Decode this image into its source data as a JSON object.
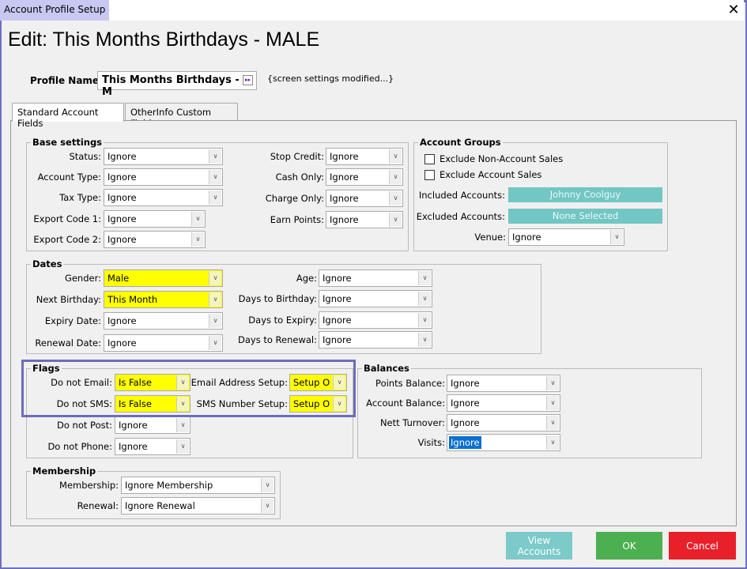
{
  "window": {
    "title": "Account Profile Setup",
    "close_label": "✕"
  },
  "heading": "Edit: This Months Birthdays - MALE",
  "profile": {
    "label": "Profile Name:",
    "value": "This Months Birthdays - M",
    "button_icon": "fast-forward-icon",
    "button_glyph": "▸▸",
    "note": "{screen settings modified...}"
  },
  "tabs": [
    {
      "label": "Standard Account Fields",
      "active": true
    },
    {
      "label": "OtherInfo Custom Fields",
      "active": false
    }
  ],
  "groups": {
    "base": "Base settings",
    "account_groups": "Account Groups",
    "dates": "Dates",
    "flags": "Flags",
    "balances": "Balances",
    "membership": "Membership"
  },
  "fields": {
    "status": {
      "label": "Status:",
      "value": "Ignore"
    },
    "account_type": {
      "label": "Account Type:",
      "value": "Ignore"
    },
    "tax_type": {
      "label": "Tax Type:",
      "value": "Ignore"
    },
    "export_code_1": {
      "label": "Export Code 1:",
      "value": "Ignore"
    },
    "export_code_2": {
      "label": "Export Code 2:",
      "value": "Ignore"
    },
    "stop_credit": {
      "label": "Stop Credit:",
      "value": "Ignore"
    },
    "cash_only": {
      "label": "Cash Only:",
      "value": "Ignore"
    },
    "charge_only": {
      "label": "Charge Only:",
      "value": "Ignore"
    },
    "earn_points": {
      "label": "Earn Points:",
      "value": "Ignore"
    },
    "venue": {
      "label": "Venue:",
      "value": "Ignore"
    },
    "gender": {
      "label": "Gender:",
      "value": "Male",
      "highlighted": true
    },
    "next_birthday": {
      "label": "Next Birthday:",
      "value": "This Month",
      "highlighted": true
    },
    "expiry_date": {
      "label": "Expiry Date:",
      "value": "Ignore"
    },
    "renewal_date": {
      "label": "Renewal Date:",
      "value": "Ignore"
    },
    "age": {
      "label": "Age:",
      "value": "Ignore"
    },
    "days_to_birthday": {
      "label": "Days to Birthday:",
      "value": "Ignore"
    },
    "days_to_expiry": {
      "label": "Days to Expiry:",
      "value": "Ignore"
    },
    "days_to_renewal": {
      "label": "Days to Renewal:",
      "value": "Ignore"
    },
    "do_not_email": {
      "label": "Do not Email:",
      "value": "Is False",
      "highlighted": true
    },
    "do_not_sms": {
      "label": "Do not SMS:",
      "value": "Is False",
      "highlighted": true
    },
    "do_not_post": {
      "label": "Do not Post:",
      "value": "Ignore"
    },
    "do_not_phone": {
      "label": "Do not Phone:",
      "value": "Ignore"
    },
    "email_address_setup": {
      "label": "Email Address Setup:",
      "value": "Setup O",
      "highlighted": true
    },
    "sms_number_setup": {
      "label": "SMS Number Setup:",
      "value": "Setup O",
      "highlighted": true
    },
    "points_balance": {
      "label": "Points Balance:",
      "value": "Ignore"
    },
    "account_balance": {
      "label": "Account Balance:",
      "value": "Ignore"
    },
    "nett_turnover": {
      "label": "Nett Turnover:",
      "value": "Ignore"
    },
    "visits": {
      "label": "Visits:",
      "value": "Ignore",
      "selected": true
    },
    "membership": {
      "label": "Membership:",
      "value": "Ignore Membership"
    },
    "renewal": {
      "label": "Renewal:",
      "value": "Ignore Renewal"
    }
  },
  "account_groups": {
    "exclude_non_account_sales": {
      "label": "Exclude Non-Account Sales",
      "checked": false
    },
    "exclude_account_sales": {
      "label": "Exclude Account Sales",
      "checked": false
    },
    "included_label": "Included Accounts:",
    "included_value": "Johnny  Coolguy",
    "excluded_label": "Excluded Accounts:",
    "excluded_value": "None Selected"
  },
  "buttons": {
    "view_accounts": "View\nAccounts",
    "ok": "OK",
    "cancel": "Cancel"
  },
  "colors": {
    "highlight": "#ffff00",
    "teal": "#72c6c4",
    "ok": "#4caf50",
    "cancel": "#e8202a",
    "selection": "#0a6fd0"
  }
}
